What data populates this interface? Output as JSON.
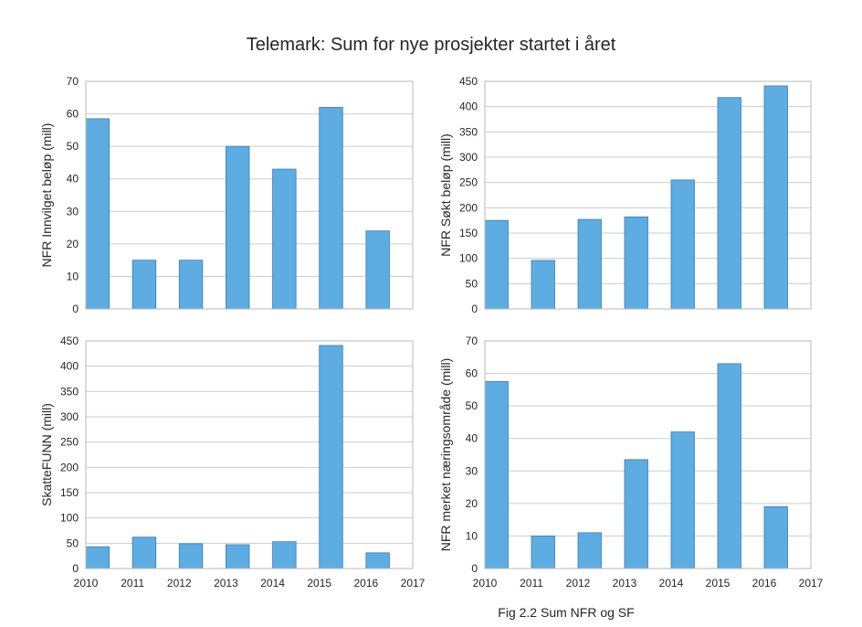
{
  "figure": {
    "title": "Telemark: Sum for nye prosjekter startet i året",
    "caption": "Fig 2.2 Sum NFR og SF"
  },
  "colors": {
    "bar_fill": "#5dade2",
    "bar_edge": "#3a7cb5",
    "grid": "#cccccc"
  },
  "chart_data": [
    {
      "type": "bar",
      "panel": "top-left",
      "ylabel": "NFR Innvilget beløp (mill)",
      "x": [
        2010,
        2011,
        2012,
        2013,
        2014,
        2015,
        2016
      ],
      "values": [
        58.5,
        15,
        15,
        50,
        43,
        62,
        24
      ],
      "xlim": [
        2010,
        2017
      ],
      "ylim": [
        0,
        70
      ],
      "yticks": [
        0,
        10,
        20,
        30,
        40,
        50,
        60,
        70
      ],
      "xticks": [],
      "grid": true
    },
    {
      "type": "bar",
      "panel": "top-right",
      "ylabel": "NFR Søkt beløp (mill)",
      "x": [
        2010,
        2011,
        2012,
        2013,
        2014,
        2015,
        2016
      ],
      "values": [
        175,
        96,
        177,
        182,
        255,
        418,
        441
      ],
      "xlim": [
        2010,
        2017
      ],
      "ylim": [
        0,
        450
      ],
      "yticks": [
        0,
        50,
        100,
        150,
        200,
        250,
        300,
        350,
        400,
        450
      ],
      "xticks": [],
      "grid": true
    },
    {
      "type": "bar",
      "panel": "bottom-left",
      "ylabel": "SkatteFUNN (mill)",
      "x": [
        2010,
        2011,
        2012,
        2013,
        2014,
        2015,
        2016
      ],
      "values": [
        43,
        62,
        49,
        47,
        53,
        441,
        31
      ],
      "xlim": [
        2010,
        2017
      ],
      "ylim": [
        0,
        450
      ],
      "yticks": [
        0,
        50,
        100,
        150,
        200,
        250,
        300,
        350,
        400,
        450
      ],
      "xticks": [
        2010,
        2011,
        2012,
        2013,
        2014,
        2015,
        2016,
        2017
      ],
      "grid": true
    },
    {
      "type": "bar",
      "panel": "bottom-right",
      "ylabel": "NFR merket næringsområde (mill)",
      "x": [
        2010,
        2011,
        2012,
        2013,
        2014,
        2015,
        2016
      ],
      "values": [
        57.5,
        10,
        11,
        33.5,
        42,
        63,
        19
      ],
      "xlim": [
        2010,
        2017
      ],
      "ylim": [
        0,
        70
      ],
      "yticks": [
        0,
        10,
        20,
        30,
        40,
        50,
        60,
        70
      ],
      "xticks": [
        2010,
        2011,
        2012,
        2013,
        2014,
        2015,
        2016,
        2017
      ],
      "grid": true
    }
  ]
}
